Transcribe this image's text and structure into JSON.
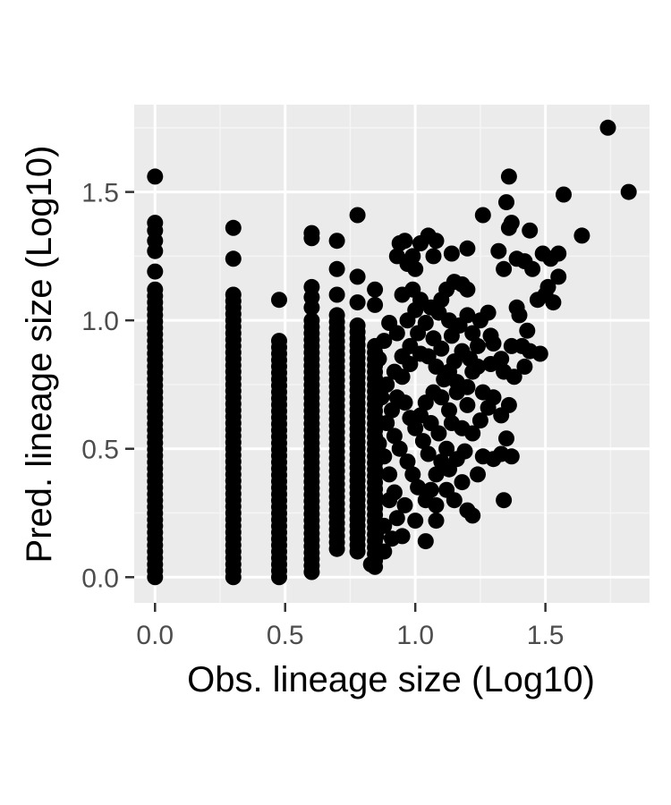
{
  "colors": {
    "panel": "#ebebeb",
    "grid_major": "#ffffff",
    "grid_minor": "#f5f5f5",
    "point": "#000000",
    "tick": "#333333",
    "tick_label": "#4d4d4d"
  },
  "chart_data": {
    "type": "scatter",
    "xlabel": "Obs. lineage size (Log10)",
    "ylabel": "Pred. lineage size (Log10)",
    "xlim": [
      -0.08,
      1.9
    ],
    "ylim": [
      -0.1,
      1.84
    ],
    "x_ticks": [
      0.0,
      0.5,
      1.0,
      1.5
    ],
    "y_ticks": [
      0.0,
      0.5,
      1.0,
      1.5
    ],
    "x_tick_labels": [
      "0.0",
      "0.5",
      "1.0",
      "1.5"
    ],
    "y_tick_labels": [
      "0.0",
      "0.5",
      "1.0",
      "1.5"
    ],
    "grid": true,
    "legend": "none",
    "columns": [
      {
        "x": 0.0,
        "y_min": 0.0,
        "y_max": 1.12,
        "extra_y": [
          1.56,
          1.38,
          1.35,
          1.31,
          1.27,
          1.19
        ]
      },
      {
        "x": 0.301,
        "y_min": 0.0,
        "y_max": 1.1,
        "extra_y": [
          1.36,
          1.24
        ]
      },
      {
        "x": 0.477,
        "y_min": 0.0,
        "y_max": 0.92,
        "extra_y": [
          1.08
        ]
      },
      {
        "x": 0.602,
        "y_min": 0.02,
        "y_max": 1.0,
        "extra_y": [
          1.34,
          1.32,
          1.13,
          1.09,
          1.05
        ]
      },
      {
        "x": 0.699,
        "y_min": 0.11,
        "y_max": 1.02,
        "extra_y": [
          1.31,
          1.2,
          1.1
        ]
      },
      {
        "x": 0.778,
        "y_min": 0.1,
        "y_max": 0.98,
        "extra_y": [
          1.41,
          1.17,
          1.07
        ]
      },
      {
        "x": 0.845,
        "y_min": 0.04,
        "y_max": 0.9,
        "extra_y": [
          1.12,
          1.06
        ]
      }
    ],
    "points": [
      [
        1.74,
        1.75
      ],
      [
        1.82,
        1.5
      ],
      [
        1.57,
        1.49
      ],
      [
        1.36,
        1.56
      ],
      [
        1.35,
        1.46
      ],
      [
        1.26,
        1.41
      ],
      [
        1.37,
        1.38
      ],
      [
        1.36,
        1.36
      ],
      [
        1.44,
        1.35
      ],
      [
        1.64,
        1.33
      ],
      [
        1.49,
        1.26
      ],
      [
        1.55,
        1.26
      ],
      [
        1.52,
        1.24
      ],
      [
        1.39,
        1.24
      ],
      [
        1.42,
        1.23
      ],
      [
        1.45,
        1.2
      ],
      [
        1.32,
        1.27
      ],
      [
        1.34,
        1.2
      ],
      [
        1.2,
        1.28
      ],
      [
        1.14,
        1.26
      ],
      [
        1.05,
        1.33
      ],
      [
        1.08,
        1.31
      ],
      [
        0.94,
        1.3
      ],
      [
        0.96,
        1.31
      ],
      [
        1.02,
        1.3
      ],
      [
        0.99,
        1.25
      ],
      [
        1.07,
        1.25
      ],
      [
        1.15,
        1.15
      ],
      [
        1.18,
        1.14
      ],
      [
        1.2,
        1.12
      ],
      [
        1.12,
        1.12
      ],
      [
        1.1,
        1.08
      ],
      [
        1.06,
        1.05
      ],
      [
        1.0,
        1.2
      ],
      [
        0.97,
        1.22
      ],
      [
        0.93,
        1.25
      ],
      [
        1.55,
        1.17
      ],
      [
        1.51,
        1.13
      ],
      [
        1.5,
        1.1
      ],
      [
        1.47,
        1.08
      ],
      [
        1.53,
        1.07
      ],
      [
        1.39,
        1.05
      ],
      [
        1.4,
        1.02
      ],
      [
        1.28,
        1.03
      ],
      [
        1.25,
        1.0
      ],
      [
        1.29,
        0.94
      ],
      [
        1.3,
        0.91
      ],
      [
        1.33,
        0.85
      ],
      [
        1.37,
        0.9
      ],
      [
        1.41,
        0.9
      ],
      [
        1.43,
        0.96
      ],
      [
        1.44,
        0.88
      ],
      [
        1.48,
        0.87
      ],
      [
        1.42,
        0.82
      ],
      [
        1.38,
        0.78
      ],
      [
        1.34,
        0.8
      ],
      [
        1.29,
        0.83
      ],
      [
        1.24,
        0.82
      ],
      [
        1.21,
        0.85
      ],
      [
        1.18,
        0.88
      ],
      [
        1.15,
        0.84
      ],
      [
        1.13,
        0.8
      ],
      [
        1.16,
        0.76
      ],
      [
        1.2,
        0.74
      ],
      [
        1.26,
        0.72
      ],
      [
        1.3,
        0.7
      ],
      [
        1.28,
        0.66
      ],
      [
        1.33,
        0.63
      ],
      [
        1.36,
        0.67
      ],
      [
        1.35,
        0.54
      ],
      [
        1.33,
        0.48
      ],
      [
        1.37,
        0.47
      ],
      [
        1.3,
        0.46
      ],
      [
        1.26,
        0.47
      ],
      [
        1.24,
        0.4
      ],
      [
        1.19,
        0.49
      ],
      [
        1.18,
        0.58
      ],
      [
        1.14,
        0.6
      ],
      [
        1.13,
        0.65
      ],
      [
        1.1,
        0.7
      ],
      [
        1.07,
        0.72
      ],
      [
        1.04,
        0.68
      ],
      [
        1.02,
        0.63
      ],
      [
        1.06,
        0.6
      ],
      [
        1.09,
        0.56
      ],
      [
        1.12,
        0.5
      ],
      [
        1.1,
        0.45
      ],
      [
        1.08,
        0.4
      ],
      [
        1.05,
        0.48
      ],
      [
        1.03,
        0.53
      ],
      [
        1.0,
        0.58
      ],
      [
        0.98,
        0.62
      ],
      [
        0.96,
        0.68
      ],
      [
        0.93,
        0.7
      ],
      [
        0.91,
        0.65
      ],
      [
        0.89,
        0.6
      ],
      [
        0.92,
        0.55
      ],
      [
        0.94,
        0.5
      ],
      [
        0.97,
        0.45
      ],
      [
        0.99,
        0.4
      ],
      [
        1.01,
        0.35
      ],
      [
        1.04,
        0.3
      ],
      [
        1.08,
        0.28
      ],
      [
        1.12,
        0.34
      ],
      [
        1.15,
        0.3
      ],
      [
        1.2,
        0.26
      ],
      [
        1.22,
        0.24
      ],
      [
        1.18,
        0.37
      ],
      [
        1.34,
        0.3
      ],
      [
        1.04,
        0.14
      ],
      [
        1.08,
        0.22
      ],
      [
        0.96,
        0.28
      ],
      [
        0.92,
        0.33
      ],
      [
        0.9,
        0.4
      ],
      [
        0.88,
        0.47
      ],
      [
        0.86,
        0.52
      ],
      [
        0.89,
        0.75
      ],
      [
        0.92,
        0.8
      ],
      [
        0.95,
        0.86
      ],
      [
        0.98,
        0.9
      ],
      [
        1.01,
        0.95
      ],
      [
        1.04,
        0.99
      ],
      [
        1.07,
        0.93
      ],
      [
        1.1,
        0.89
      ],
      [
        1.14,
        0.94
      ],
      [
        1.17,
        0.98
      ],
      [
        1.2,
        1.02
      ],
      [
        1.22,
        0.95
      ],
      [
        1.24,
        0.9
      ],
      [
        1.22,
        0.8
      ],
      [
        1.16,
        0.72
      ],
      [
        1.2,
        0.67
      ],
      [
        1.25,
        0.61
      ],
      [
        1.22,
        0.56
      ],
      [
        1.02,
        0.87
      ],
      [
        0.98,
        0.83
      ],
      [
        0.95,
        0.78
      ],
      [
        0.93,
        0.95
      ],
      [
        0.9,
        0.99
      ],
      [
        0.88,
        0.92
      ],
      [
        0.86,
        0.85
      ],
      [
        0.87,
        0.7
      ],
      [
        0.9,
        0.3
      ],
      [
        0.88,
        0.2
      ],
      [
        0.85,
        0.16
      ],
      [
        0.91,
        0.15
      ],
      [
        0.95,
        0.16
      ],
      [
        0.88,
        0.1
      ],
      [
        0.83,
        0.05
      ],
      [
        0.93,
        0.23
      ],
      [
        1.0,
        0.22
      ],
      [
        1.06,
        0.34
      ],
      [
        1.13,
        0.42
      ],
      [
        1.16,
        0.46
      ],
      [
        1.11,
        0.77
      ],
      [
        1.08,
        0.82
      ],
      [
        1.05,
        0.86
      ],
      [
        1.13,
        1.0
      ],
      [
        1.09,
        1.03
      ],
      [
        1.02,
        1.08
      ],
      [
        0.99,
        1.12
      ],
      [
        0.95,
        1.1
      ],
      [
        1.0,
        1.04
      ],
      [
        0.97,
        1.0
      ]
    ]
  }
}
